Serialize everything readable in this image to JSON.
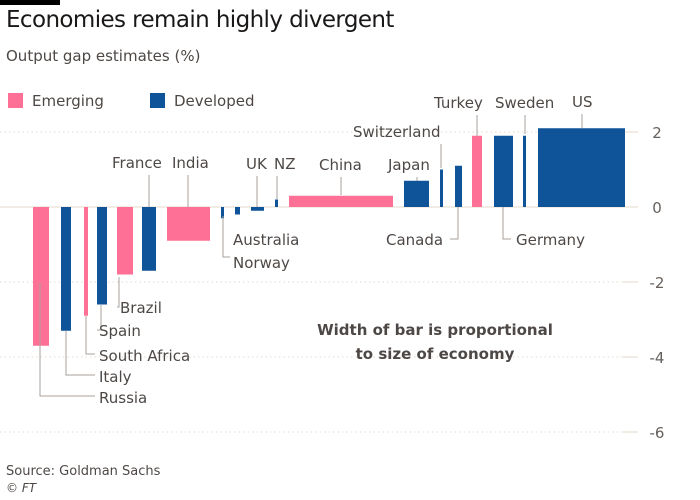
{
  "title": "Economies remain highly divergent",
  "subtitle": "Output gap estimates (%)",
  "legend": {
    "emerging": "Emerging",
    "developed": "Developed"
  },
  "annotation": [
    "Width of bar is proportional",
    "to size of economy"
  ],
  "source": "Source: Goldman Sachs",
  "credit": "© FT",
  "colors": {
    "emerging": "#ff7096",
    "developed": "#0f5499",
    "grid": "#e6d9ce",
    "axis_text": "#66605c",
    "label": "#4d4845",
    "leader": "#a8a19b"
  },
  "chart_data": {
    "type": "bar",
    "title": "Economies remain highly divergent",
    "subtitle": "Output gap estimates (%)",
    "xlabel": "",
    "ylabel": "",
    "ylim": [
      -6.4,
      2.4
    ],
    "yticks": [
      2,
      0,
      -2,
      -4,
      -6
    ],
    "grid": true,
    "legend": "top-left",
    "width_encoding": "Width of bar is proportional to size of economy",
    "series": [
      {
        "name": "Output gap",
        "points": [
          {
            "country": "Russia",
            "group": "Emerging",
            "value": -3.7
          },
          {
            "country": "Italy",
            "group": "Developed",
            "value": -3.3
          },
          {
            "country": "South Africa",
            "group": "Emerging",
            "value": -2.9
          },
          {
            "country": "Spain",
            "group": "Developed",
            "value": -2.6
          },
          {
            "country": "Brazil",
            "group": "Emerging",
            "value": -1.8
          },
          {
            "country": "France",
            "group": "Developed",
            "value": -1.7
          },
          {
            "country": "India",
            "group": "Emerging",
            "value": -0.9
          },
          {
            "country": "Australia",
            "group": "Developed",
            "value": -0.3
          },
          {
            "country": "Norway",
            "group": "Developed",
            "value": -0.2
          },
          {
            "country": "UK",
            "group": "Developed",
            "value": -0.1
          },
          {
            "country": "NZ",
            "group": "Developed",
            "value": 0.2
          },
          {
            "country": "China",
            "group": "Emerging",
            "value": 0.3
          },
          {
            "country": "Japan",
            "group": "Developed",
            "value": 0.7
          },
          {
            "country": "Switzerland",
            "group": "Developed",
            "value": 1.0
          },
          {
            "country": "Canada",
            "group": "Developed",
            "value": 1.1
          },
          {
            "country": "Turkey",
            "group": "Emerging",
            "value": 1.9
          },
          {
            "country": "Germany",
            "group": "Developed",
            "value": 1.9
          },
          {
            "country": "Sweden",
            "group": "Developed",
            "value": 1.9
          },
          {
            "country": "US",
            "group": "Developed",
            "value": 2.1
          }
        ]
      }
    ]
  }
}
